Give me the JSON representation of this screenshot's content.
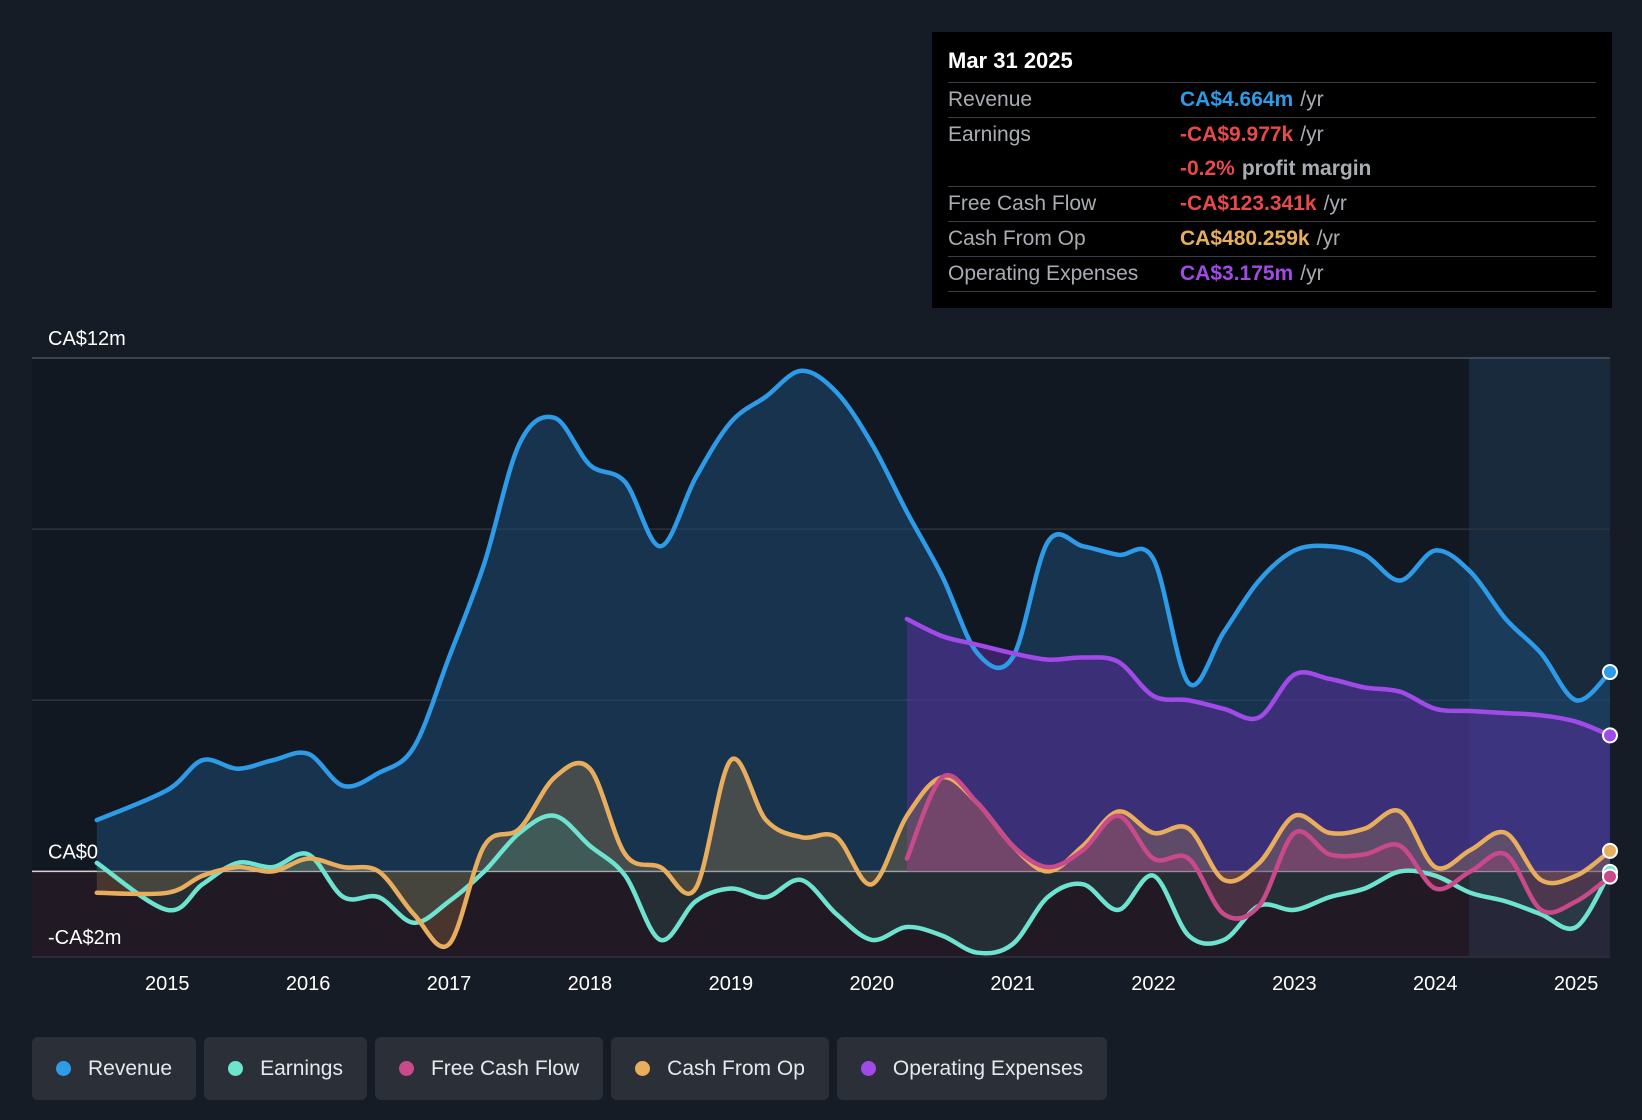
{
  "tooltip": {
    "date": "Mar 31 2025",
    "revenue": {
      "label": "Revenue",
      "value": "CA$4.664m",
      "unit": "/yr"
    },
    "earnings": {
      "label": "Earnings",
      "value": "-CA$9.977k",
      "unit": "/yr"
    },
    "margin": {
      "value": "-0.2%",
      "text": "profit margin"
    },
    "fcf": {
      "label": "Free Cash Flow",
      "value": "-CA$123.341k",
      "unit": "/yr"
    },
    "cfo": {
      "label": "Cash From Op",
      "value": "CA$480.259k",
      "unit": "/yr"
    },
    "opex": {
      "label": "Operating Expenses",
      "value": "CA$3.175m",
      "unit": "/yr"
    }
  },
  "legend": [
    {
      "label": "Revenue",
      "color": "#2d9be8"
    },
    {
      "label": "Earnings",
      "color": "#6ee3cf"
    },
    {
      "label": "Free Cash Flow",
      "color": "#c94a8a"
    },
    {
      "label": "Cash From Op",
      "color": "#e8ae5e"
    },
    {
      "label": "Operating Expenses",
      "color": "#a24ae8"
    }
  ],
  "chart_data": {
    "type": "line",
    "ylim": [
      -2,
      12
    ],
    "y_tick_labels": [
      {
        "value": 12,
        "label": "CA$12m"
      },
      {
        "value": 0,
        "label": "CA$0"
      },
      {
        "value": -2,
        "label": "-CA$2m"
      }
    ],
    "x_tick_labels": [
      "2015",
      "2016",
      "2017",
      "2018",
      "2019",
      "2020",
      "2021",
      "2022",
      "2023",
      "2024",
      "2025"
    ],
    "x_tick_values": [
      2015,
      2016,
      2017,
      2018,
      2019,
      2020,
      2021,
      2022,
      2023,
      2024,
      2025
    ],
    "xlim": [
      2014.04,
      2025.24
    ],
    "forecast_start": 2024.24,
    "series": [
      {
        "name": "Revenue",
        "color": "#2d9be8",
        "x": [
          2014.5,
          2015.0,
          2015.25,
          2015.5,
          2015.75,
          2016.0,
          2016.25,
          2016.5,
          2016.75,
          2017.0,
          2017.25,
          2017.5,
          2017.75,
          2018.0,
          2018.25,
          2018.5,
          2018.75,
          2019.0,
          2019.25,
          2019.5,
          2019.75,
          2020.0,
          2020.25,
          2020.5,
          2020.75,
          2021.0,
          2021.25,
          2021.5,
          2021.75,
          2022.0,
          2022.25,
          2022.5,
          2022.75,
          2023.0,
          2023.25,
          2023.5,
          2023.75,
          2024.0,
          2024.25,
          2024.5,
          2024.75,
          2025.0,
          2025.24
        ],
        "values": [
          1.2,
          1.9,
          2.6,
          2.4,
          2.6,
          2.75,
          2.0,
          2.3,
          2.9,
          5.0,
          7.2,
          10.0,
          10.6,
          9.5,
          9.1,
          7.6,
          9.2,
          10.5,
          11.1,
          11.7,
          11.2,
          10.0,
          8.4,
          6.9,
          5.1,
          5.0,
          7.7,
          7.6,
          7.4,
          7.3,
          4.4,
          5.6,
          6.8,
          7.5,
          7.6,
          7.4,
          6.8,
          7.5,
          7.0,
          5.9,
          5.1,
          4.0,
          4.66
        ]
      },
      {
        "name": "Earnings",
        "color": "#6ee3cf",
        "x": [
          2014.5,
          2015.0,
          2015.25,
          2015.5,
          2015.75,
          2016.0,
          2016.25,
          2016.5,
          2016.75,
          2017.0,
          2017.25,
          2017.5,
          2017.75,
          2018.0,
          2018.25,
          2018.5,
          2018.75,
          2019.0,
          2019.25,
          2019.5,
          2019.75,
          2020.0,
          2020.25,
          2020.5,
          2020.75,
          2021.0,
          2021.25,
          2021.5,
          2021.75,
          2022.0,
          2022.25,
          2022.5,
          2022.75,
          2023.0,
          2023.25,
          2023.5,
          2023.75,
          2024.0,
          2024.25,
          2024.5,
          2024.75,
          2025.0,
          2025.24
        ],
        "values": [
          0.2,
          -0.9,
          -0.3,
          0.2,
          0.1,
          0.4,
          -0.6,
          -0.6,
          -1.2,
          -0.7,
          0.0,
          0.9,
          1.3,
          0.6,
          -0.1,
          -1.6,
          -0.7,
          -0.4,
          -0.6,
          -0.2,
          -1.0,
          -1.6,
          -1.3,
          -1.5,
          -1.9,
          -1.7,
          -0.6,
          -0.3,
          -0.9,
          -0.1,
          -1.5,
          -1.6,
          -0.8,
          -0.9,
          -0.6,
          -0.4,
          0.0,
          -0.1,
          -0.5,
          -0.7,
          -1.0,
          -1.3,
          -0.01
        ]
      },
      {
        "name": "Free Cash Flow",
        "color": "#c94a8a",
        "x": [
          2020.25,
          2020.5,
          2020.75,
          2021.0,
          2021.25,
          2021.5,
          2021.75,
          2022.0,
          2022.25,
          2022.5,
          2022.75,
          2023.0,
          2023.25,
          2023.5,
          2023.75,
          2024.0,
          2024.25,
          2024.5,
          2024.75,
          2025.0,
          2025.24
        ],
        "values": [
          0.3,
          2.2,
          1.6,
          0.6,
          0.1,
          0.5,
          1.3,
          0.3,
          0.3,
          -1.0,
          -0.8,
          0.9,
          0.4,
          0.4,
          0.6,
          -0.4,
          0.0,
          0.4,
          -0.9,
          -0.7,
          -0.12
        ]
      },
      {
        "name": "Cash From Op",
        "color": "#e8ae5e",
        "x": [
          2014.5,
          2015.0,
          2015.25,
          2015.5,
          2015.75,
          2016.0,
          2016.25,
          2016.5,
          2016.75,
          2017.0,
          2017.25,
          2017.5,
          2017.75,
          2018.0,
          2018.25,
          2018.5,
          2018.75,
          2019.0,
          2019.25,
          2019.5,
          2019.75,
          2020.0,
          2020.25,
          2020.5,
          2020.75,
          2021.0,
          2021.25,
          2021.5,
          2021.75,
          2022.0,
          2022.25,
          2022.5,
          2022.75,
          2023.0,
          2023.25,
          2023.5,
          2023.75,
          2024.0,
          2024.25,
          2024.5,
          2024.75,
          2025.0,
          2025.24
        ],
        "values": [
          -0.5,
          -0.5,
          -0.1,
          0.1,
          0.0,
          0.3,
          0.1,
          0.0,
          -1.0,
          -1.7,
          0.6,
          1.0,
          2.2,
          2.4,
          0.4,
          0.1,
          -0.4,
          2.6,
          1.2,
          0.8,
          0.8,
          -0.3,
          1.3,
          2.2,
          1.6,
          0.6,
          0.0,
          0.6,
          1.4,
          0.9,
          1.0,
          -0.2,
          0.2,
          1.3,
          0.9,
          1.0,
          1.4,
          0.1,
          0.5,
          0.9,
          -0.2,
          -0.1,
          0.48
        ]
      },
      {
        "name": "Operating Expenses",
        "color": "#a24ae8",
        "x": [
          2020.25,
          2020.5,
          2020.75,
          2021.0,
          2021.25,
          2021.5,
          2021.75,
          2022.0,
          2022.25,
          2022.5,
          2022.75,
          2023.0,
          2023.25,
          2023.5,
          2023.75,
          2024.0,
          2024.25,
          2024.5,
          2024.75,
          2025.0,
          2025.24
        ],
        "values": [
          5.9,
          5.5,
          5.3,
          5.1,
          4.95,
          5.0,
          4.9,
          4.1,
          4.0,
          3.8,
          3.6,
          4.6,
          4.5,
          4.3,
          4.2,
          3.8,
          3.75,
          3.7,
          3.65,
          3.5,
          3.18
        ]
      }
    ]
  }
}
